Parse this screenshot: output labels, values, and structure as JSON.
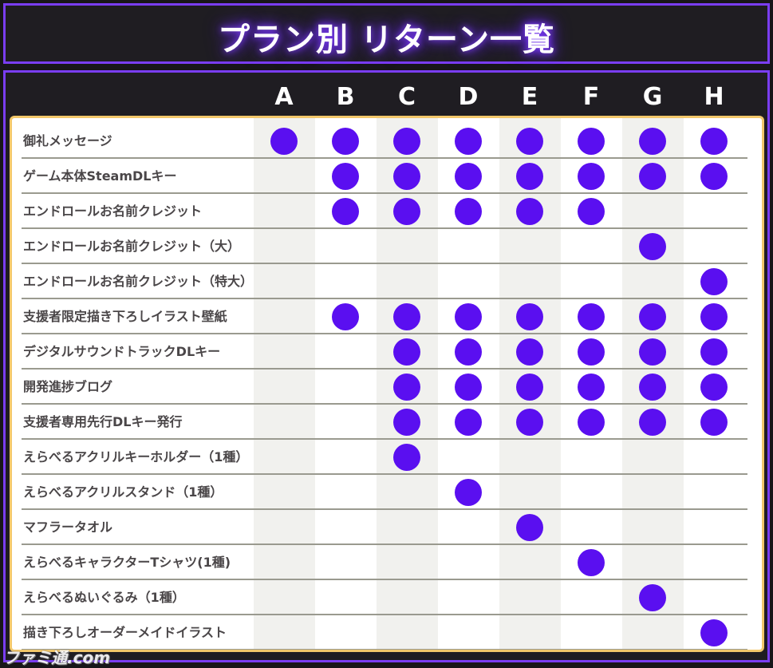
{
  "title": "プラン別 リターン一覧",
  "plans": [
    "A",
    "B",
    "C",
    "D",
    "E",
    "F",
    "G",
    "H"
  ],
  "rows": [
    {
      "label": "御礼メッセージ",
      "plans": [
        "A",
        "B",
        "C",
        "D",
        "E",
        "F",
        "G",
        "H"
      ]
    },
    {
      "label": "ゲーム本体SteamDLキー",
      "plans": [
        "B",
        "C",
        "D",
        "E",
        "F",
        "G",
        "H"
      ]
    },
    {
      "label": "エンドロールお名前クレジット",
      "plans": [
        "B",
        "C",
        "D",
        "E",
        "F"
      ]
    },
    {
      "label": "エンドロールお名前クレジット（大）",
      "plans": [
        "G"
      ]
    },
    {
      "label": "エンドロールお名前クレジット（特大）",
      "plans": [
        "H"
      ]
    },
    {
      "label": "支援者限定描き下ろしイラスト壁紙",
      "plans": [
        "B",
        "C",
        "D",
        "E",
        "F",
        "G",
        "H"
      ]
    },
    {
      "label": "デジタルサウンドトラックDLキー",
      "plans": [
        "C",
        "D",
        "E",
        "F",
        "G",
        "H"
      ]
    },
    {
      "label": "開発進捗ブログ",
      "plans": [
        "C",
        "D",
        "E",
        "F",
        "G",
        "H"
      ]
    },
    {
      "label": "支援者専用先行DLキー発行",
      "plans": [
        "C",
        "D",
        "E",
        "F",
        "G",
        "H"
      ]
    },
    {
      "label": "えらべるアクリルキーホルダー（1種）",
      "plans": [
        "C"
      ]
    },
    {
      "label": "えらべるアクリルスタンド（1種）",
      "plans": [
        "D"
      ]
    },
    {
      "label": "マフラータオル",
      "plans": [
        "E"
      ]
    },
    {
      "label": "えらべるキャラクターTシャツ(1種)",
      "plans": [
        "F"
      ]
    },
    {
      "label": "えらべるぬいぐるみ（1種）",
      "plans": [
        "G"
      ]
    },
    {
      "label": "描き下ろしオーダーメイドイラスト",
      "plans": [
        "H"
      ]
    }
  ],
  "watermark": "ファミ通.com",
  "colors": {
    "accent": "#7a3df2",
    "dot": "#5a0ff0",
    "card_border": "#f2c76a",
    "background": "#1f1d22"
  }
}
